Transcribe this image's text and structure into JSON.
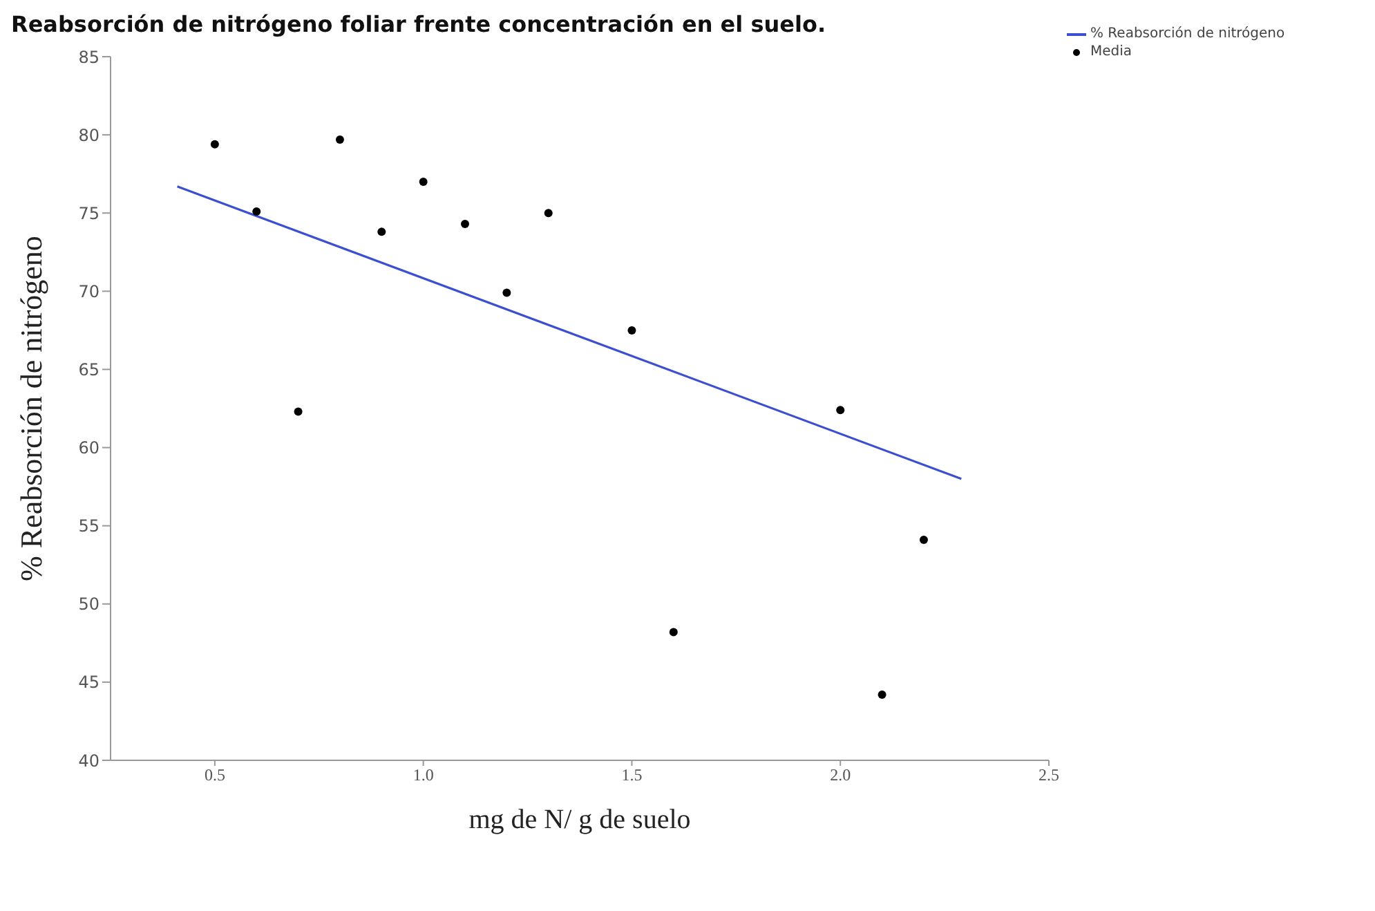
{
  "chart_data": {
    "type": "scatter",
    "title": "Reabsorción de nitrógeno foliar frente concentración en el suelo.",
    "xlabel": "mg de N/ g de suelo",
    "ylabel": "% Reabsorción de nitrógeno",
    "xlim": [
      0.25,
      2.5
    ],
    "xticks": [
      0.5,
      {
        "value": 1,
        "label": "1.0"
      },
      1.5,
      {
        "value": 2,
        "label": "2.0"
      },
      2.5
    ],
    "ylim": [
      40,
      85
    ],
    "yticks": [
      40,
      45,
      50,
      55,
      60,
      65,
      70,
      75,
      80,
      85
    ],
    "grid": false,
    "legend": "top right",
    "series": [
      {
        "name": "% Reabsorción de nitrógeno",
        "type": "line",
        "color": "#3c4fd0",
        "x": [
          0.41,
          2.29
        ],
        "values": [
          76.7,
          58.0
        ],
        "marker": "none"
      },
      {
        "name": "Media",
        "color": "#000000",
        "x": [
          0.5,
          0.6,
          0.7,
          0.8,
          0.9,
          1.0,
          1.1,
          1.2,
          1.3,
          1.5,
          1.6,
          2.0,
          2.1,
          2.2
        ],
        "values": [
          79.4,
          75.1,
          62.3,
          79.7,
          73.8,
          77.0,
          74.3,
          69.9,
          75.0,
          67.5,
          48.2,
          62.4,
          44.2,
          54.1
        ],
        "marker": "circle"
      }
    ]
  }
}
